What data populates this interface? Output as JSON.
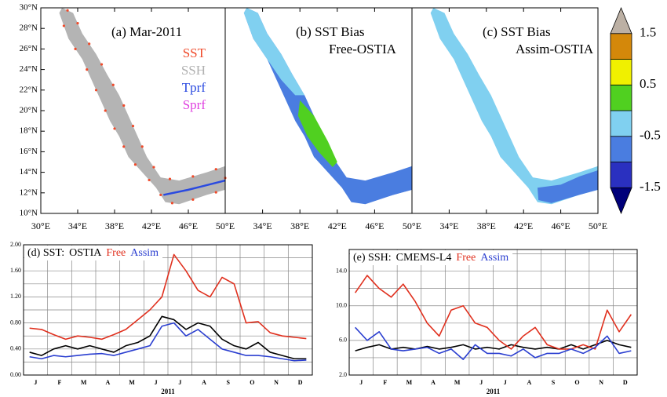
{
  "chart_data": [
    {
      "type": "map",
      "title": "(a) Mar-2011",
      "legend": [
        {
          "name": "SST",
          "color": "#f04a2a"
        },
        {
          "name": "SSH",
          "color": "#b0b0b0"
        },
        {
          "name": "Tprf",
          "color": "#2a4ae0"
        },
        {
          "name": "Sprf",
          "color": "#e040e0"
        }
      ],
      "xlim": [
        30,
        50
      ],
      "ylim": [
        10,
        30
      ],
      "xticks": [
        {
          "value": 30,
          "label": "30°E"
        },
        {
          "value": 34,
          "label": "34°E"
        },
        {
          "value": 38,
          "label": "38°E"
        },
        {
          "value": 42,
          "label": "42°E"
        },
        {
          "value": 46,
          "label": "46°E"
        },
        {
          "value": 50,
          "label": "50°E"
        }
      ],
      "yticks": [
        {
          "value": 10,
          "label": "10°N"
        },
        {
          "value": 12,
          "label": "12°N"
        },
        {
          "value": 14,
          "label": "14°N"
        },
        {
          "value": 16,
          "label": "16°N"
        },
        {
          "value": 18,
          "label": "18°N"
        },
        {
          "value": 20,
          "label": "20°N"
        },
        {
          "value": 22,
          "label": "22°N"
        },
        {
          "value": 24,
          "label": "24°N"
        },
        {
          "value": 26,
          "label": "26°N"
        },
        {
          "value": 28,
          "label": "28°N"
        },
        {
          "value": 30,
          "label": "30°N"
        }
      ]
    },
    {
      "type": "map",
      "title": "(b) SST Bias",
      "subtitle": "Free-OSTIA",
      "xlim": [
        30,
        50
      ],
      "ylim": [
        10,
        30
      ],
      "xticks": [
        {
          "value": 34,
          "label": "34°E"
        },
        {
          "value": 38,
          "label": "38°E"
        },
        {
          "value": 42,
          "label": "42°E"
        },
        {
          "value": 46,
          "label": "46°E"
        },
        {
          "value": 50,
          "label": "50°E"
        }
      ]
    },
    {
      "type": "map",
      "title": "(c) SST Bias",
      "subtitle": "Assim-OSTIA",
      "xlim": [
        30,
        50
      ],
      "ylim": [
        10,
        30
      ],
      "xticks": [
        {
          "value": 34,
          "label": "34°E"
        },
        {
          "value": 38,
          "label": "38°E"
        },
        {
          "value": 42,
          "label": "42°E"
        },
        {
          "value": 46,
          "label": "46°E"
        },
        {
          "value": 50,
          "label": "50°E"
        }
      ]
    },
    {
      "type": "colorbar",
      "bounds": [
        -2,
        -1.5,
        -1,
        -0.5,
        0,
        0.5,
        1,
        1.5,
        2
      ],
      "colors": [
        "#00007a",
        "#2a30c0",
        "#4a7de0",
        "#80d0f0",
        "#50d020",
        "#f0f000",
        "#d4880a",
        "#bcb0a4"
      ],
      "ticks": [
        1.5,
        0.5,
        -0.5,
        -1.5
      ]
    },
    {
      "type": "line",
      "title": "(d) SST:",
      "xlabel": "2011",
      "xlim": [
        0,
        12
      ],
      "ylim": [
        0,
        2
      ],
      "xticks": [
        {
          "value": 0.5,
          "label": "J"
        },
        {
          "value": 1.5,
          "label": "F"
        },
        {
          "value": 2.5,
          "label": "M"
        },
        {
          "value": 3.5,
          "label": "A"
        },
        {
          "value": 4.5,
          "label": "M"
        },
        {
          "value": 5.5,
          "label": "J"
        },
        {
          "value": 6.5,
          "label": "J"
        },
        {
          "value": 7.5,
          "label": "A"
        },
        {
          "value": 8.5,
          "label": "S"
        },
        {
          "value": 9.5,
          "label": "O"
        },
        {
          "value": 10.5,
          "label": "N"
        },
        {
          "value": 11.5,
          "label": "D"
        }
      ],
      "xgrid": [
        1,
        2,
        3,
        4,
        5,
        6,
        7,
        8,
        9,
        10,
        11
      ],
      "yticks": [
        {
          "value": 0,
          "label": "0.00"
        },
        {
          "value": 0.4,
          "label": "0.40"
        },
        {
          "value": 0.8,
          "label": "0.80"
        },
        {
          "value": 1.2,
          "label": "1.20"
        },
        {
          "value": 1.6,
          "label": "1.60"
        },
        {
          "value": 2,
          "label": "2.00"
        }
      ],
      "ygrid": [
        0.2,
        0.6,
        1.0,
        1.4,
        1.8
      ],
      "x": [
        0.25,
        0.75,
        1.25,
        1.75,
        2.25,
        2.75,
        3.25,
        3.75,
        4.25,
        4.75,
        5.25,
        5.75,
        6.25,
        6.75,
        7.25,
        7.75,
        8.25,
        8.75,
        9.25,
        9.75,
        10.25,
        10.75,
        11.25,
        11.75
      ],
      "series": [
        {
          "name": "OSTIA",
          "color": "#000000",
          "values": [
            0.35,
            0.3,
            0.4,
            0.45,
            0.4,
            0.45,
            0.4,
            0.35,
            0.45,
            0.5,
            0.6,
            0.9,
            0.85,
            0.7,
            0.8,
            0.75,
            0.55,
            0.45,
            0.4,
            0.5,
            0.35,
            0.3,
            0.25,
            0.25
          ]
        },
        {
          "name": "Free",
          "color": "#e0301e",
          "values": [
            0.72,
            0.7,
            0.62,
            0.55,
            0.6,
            0.58,
            0.55,
            0.62,
            0.7,
            0.85,
            1.0,
            1.2,
            1.85,
            1.6,
            1.3,
            1.2,
            1.5,
            1.4,
            0.8,
            0.82,
            0.65,
            0.6,
            0.58,
            0.56
          ]
        },
        {
          "name": "Assim",
          "color": "#2a3ed0",
          "values": [
            0.28,
            0.25,
            0.3,
            0.28,
            0.3,
            0.32,
            0.33,
            0.3,
            0.35,
            0.4,
            0.45,
            0.75,
            0.8,
            0.6,
            0.7,
            0.55,
            0.4,
            0.35,
            0.3,
            0.3,
            0.28,
            0.25,
            0.22,
            0.23
          ]
        }
      ]
    },
    {
      "type": "line",
      "title": "(e) SSH:",
      "xlabel": "2011",
      "xlim": [
        0,
        12
      ],
      "ylim": [
        2,
        16.5
      ],
      "xticks": [
        {
          "value": 0.5,
          "label": "J"
        },
        {
          "value": 1.5,
          "label": "F"
        },
        {
          "value": 2.5,
          "label": "M"
        },
        {
          "value": 3.5,
          "label": "A"
        },
        {
          "value": 4.5,
          "label": "M"
        },
        {
          "value": 5.5,
          "label": "J"
        },
        {
          "value": 6.5,
          "label": "J"
        },
        {
          "value": 7.5,
          "label": "A"
        },
        {
          "value": 8.5,
          "label": "S"
        },
        {
          "value": 9.5,
          "label": "O"
        },
        {
          "value": 10.5,
          "label": "N"
        },
        {
          "value": 11.5,
          "label": "D"
        }
      ],
      "xgrid": [
        1,
        2,
        3,
        4,
        5,
        6,
        7,
        8,
        9,
        10,
        11
      ],
      "yticks": [
        {
          "value": 2,
          "label": "2.0"
        },
        {
          "value": 6,
          "label": "6.0"
        },
        {
          "value": 10,
          "label": "10.0"
        },
        {
          "value": 14,
          "label": "14.0"
        }
      ],
      "ygrid": [
        4,
        8,
        12,
        16
      ],
      "x": [
        0.25,
        0.75,
        1.25,
        1.75,
        2.25,
        2.75,
        3.25,
        3.75,
        4.25,
        4.75,
        5.25,
        5.75,
        6.25,
        6.75,
        7.25,
        7.75,
        8.25,
        8.75,
        9.25,
        9.75,
        10.25,
        10.75,
        11.25,
        11.75
      ],
      "series": [
        {
          "name": "CMEMS-L4",
          "color": "#000000",
          "values": [
            4.8,
            5.2,
            5.5,
            5.0,
            5.2,
            5.0,
            5.3,
            5.0,
            5.2,
            5.5,
            5.0,
            5.2,
            5.0,
            5.5,
            5.2,
            5.0,
            5.2,
            5.0,
            5.5,
            5.0,
            5.5,
            6.0,
            5.5,
            5.2
          ]
        },
        {
          "name": "Free",
          "color": "#e0301e",
          "values": [
            11.5,
            13.5,
            12.0,
            11.0,
            12.5,
            10.5,
            8.0,
            6.5,
            9.5,
            10.0,
            8.0,
            7.5,
            6.0,
            5.0,
            6.5,
            7.5,
            5.5,
            5.0,
            5.0,
            5.5,
            5.0,
            9.5,
            7.0,
            9.0
          ]
        },
        {
          "name": "Assim",
          "color": "#2a3ed0",
          "values": [
            7.5,
            6.0,
            7.0,
            5.0,
            4.8,
            5.0,
            5.2,
            4.5,
            5.0,
            3.8,
            5.5,
            4.5,
            4.5,
            4.2,
            5.0,
            4.0,
            4.5,
            4.5,
            5.0,
            4.5,
            5.2,
            6.5,
            4.5,
            4.8
          ]
        }
      ]
    }
  ]
}
